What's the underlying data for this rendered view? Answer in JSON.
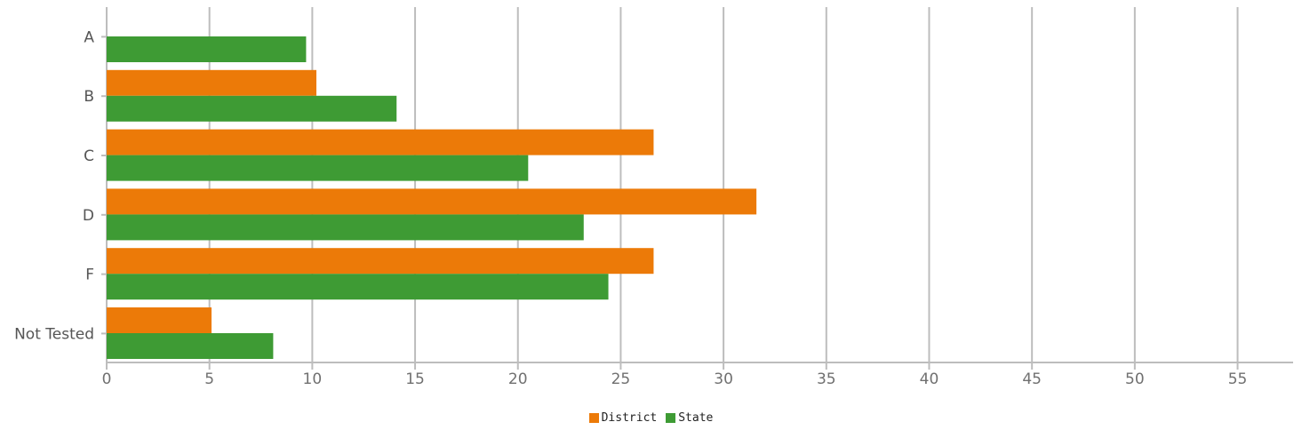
{
  "chart_data": {
    "type": "bar",
    "orientation": "horizontal",
    "title": "",
    "xlabel": "",
    "ylabel": "",
    "categories": [
      "A",
      "B",
      "C",
      "D",
      "F",
      "Not Tested"
    ],
    "series": [
      {
        "name": "District",
        "color": "#ec7a08",
        "values": [
          0,
          10.2,
          26.6,
          31.6,
          26.6,
          5.1
        ]
      },
      {
        "name": "State",
        "color": "#3e9b34",
        "values": [
          9.7,
          14.1,
          20.5,
          23.2,
          24.4,
          8.1
        ]
      }
    ],
    "xlim": [
      0,
      57.7
    ],
    "xticks": [
      0,
      5,
      10,
      15,
      20,
      25,
      30,
      35,
      40,
      45,
      50,
      55
    ],
    "grid": true,
    "legend_position": "bottom-center",
    "colors": {
      "grid": "#bdbdbd",
      "tick_label": "#707070",
      "category_label": "#555555"
    }
  }
}
